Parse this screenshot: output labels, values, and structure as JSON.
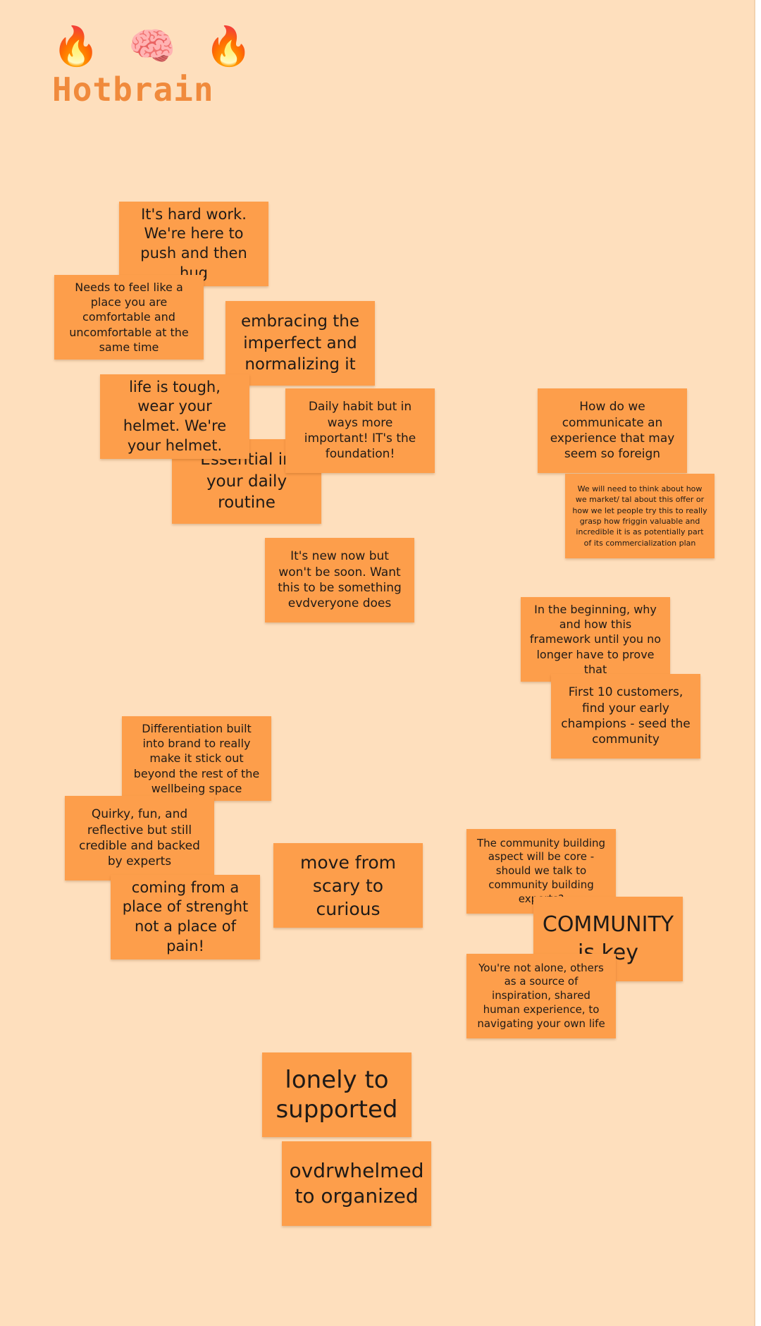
{
  "board": {
    "emojis": [
      "🔥",
      "🧠",
      "🔥"
    ],
    "title": "Hotbrain",
    "colors": {
      "background": "#fedfbd",
      "note": "#fd9e4b",
      "title": "#f08a3c"
    },
    "notes": {
      "hard_work": "It's hard work. We're here to push and then hug",
      "feel_place": "Needs to feel like a place you are comfortable and uncomfortable at the same time",
      "embracing": "embracing the imperfect and normalizing it",
      "essential": "Essential in your daily routine",
      "life_tough": "life is tough, wear your helmet. We're your helmet.",
      "daily_habit": "Daily habit but in ways more important! IT's the foundation!",
      "new_now": "It's new now but won't be soon. Want this to be something evdveryone does",
      "communicate": "How do we communicate an experience that may seem so foreign",
      "need_think": "We will need to think about how we market/ tal about this offer or how we let people try this to really grasp how friggin valuable and incredible it is as potentially part of its commercialization plan",
      "beginning": "In the beginning, why and how this framework until you no longer have to prove that",
      "first_10": "First 10 customers, find your early champions - seed the community",
      "differentiation": "Differentiation built into brand to really make it stick out beyond the rest of the wellbeing space",
      "quirky": "Quirky, fun, and reflective but still credible and backed by experts",
      "strength": "coming from a place of strenght not a place of pain!",
      "scary_curious": "move from scary to curious",
      "community_building": "The community building aspect will be core - should we talk to community building experts?",
      "community_key": "COMMUNITY is key",
      "not_alone": "You're not alone, others as a source of inspiration, shared human experience, to navigating your own life",
      "lonely": "lonely to supported",
      "overwhelmed": "ovdrwhelmed to organized"
    }
  }
}
